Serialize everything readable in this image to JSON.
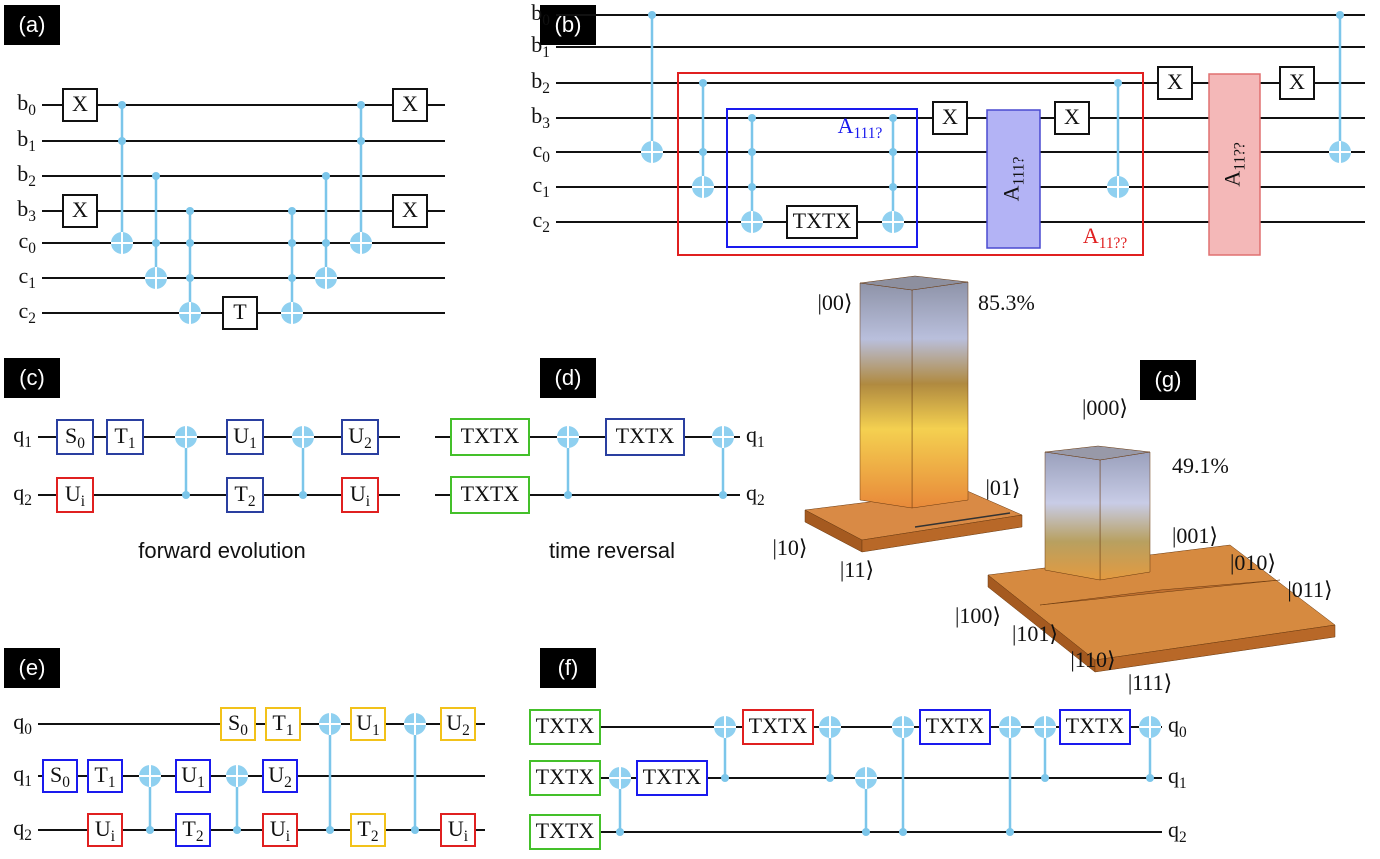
{
  "panels": {
    "a": {
      "tag": "(a)",
      "wires": [
        "b0",
        "b1",
        "b2",
        "b3",
        "c0",
        "c1",
        "c2"
      ],
      "gates": [
        "X",
        "X",
        "X",
        "X",
        "T"
      ]
    },
    "b": {
      "tag": "(b)",
      "wires": [
        "b0",
        "b1",
        "b2",
        "b3",
        "c0",
        "c1",
        "c2"
      ],
      "gates": [
        "TXTX",
        "X",
        "X",
        "X",
        "X"
      ],
      "blocks": [
        "A111?",
        "A11??"
      ],
      "box_labels": [
        "A111?",
        "A11??"
      ]
    },
    "c": {
      "tag": "(c)",
      "wires": [
        "q1",
        "q2"
      ],
      "gates": [
        "S0",
        "T1",
        "U1",
        "U2",
        "Ui",
        "T2",
        "Ui"
      ],
      "caption": "forward evolution"
    },
    "d": {
      "tag": "(d)",
      "wires": [
        "q1",
        "q2"
      ],
      "gates": [
        "TXTX",
        "TXTX",
        "TXTX"
      ],
      "caption": "time reversal"
    },
    "e": {
      "tag": "(e)",
      "wires": [
        "q0",
        "q1",
        "q2"
      ],
      "gates": [
        "S0",
        "T1",
        "U1",
        "U2",
        "S0",
        "T1",
        "U1",
        "U2",
        "Ui",
        "T2",
        "Ui",
        "T2",
        "Ui"
      ]
    },
    "f": {
      "tag": "(f)",
      "wires": [
        "q0",
        "q1",
        "q2"
      ],
      "gates": [
        "TXTX",
        "TXTX",
        "TXTX",
        "TXTX",
        "TXTX",
        "TXTX",
        "TXTX"
      ]
    },
    "g": {
      "tag": "(g)",
      "two_qubit": {
        "labels": [
          "|00⟩",
          "|01⟩",
          "|10⟩",
          "|11⟩"
        ],
        "peak": "85.3%"
      },
      "three_qubit": {
        "labels": [
          "|000⟩",
          "|001⟩",
          "|010⟩",
          "|011⟩",
          "|100⟩",
          "|101⟩",
          "|110⟩",
          "|111⟩"
        ],
        "peak": "49.1%"
      }
    }
  }
}
